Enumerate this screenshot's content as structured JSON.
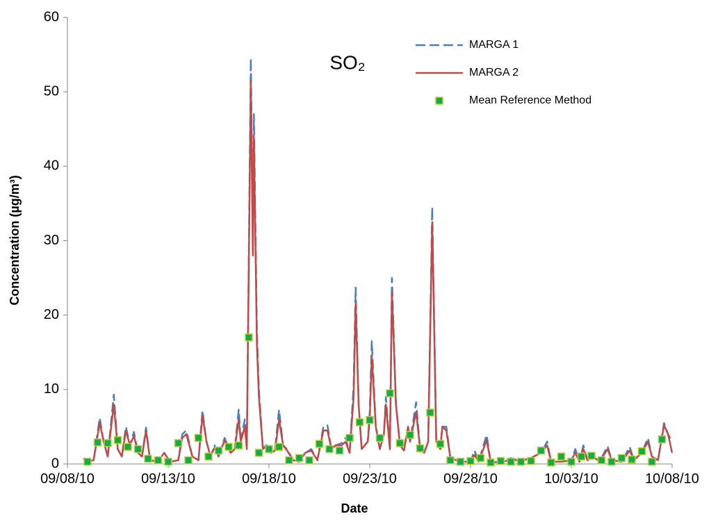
{
  "chart_data": {
    "type": "line",
    "title": "SO₂",
    "x_label": "Date",
    "y_label": "Concentration (µg/m³)",
    "xlim": [
      0,
      30
    ],
    "xticks": [
      {
        "value": 0,
        "label": "09/08/10"
      },
      {
        "value": 5,
        "label": "09/13/10"
      },
      {
        "value": 10,
        "label": "09/18/10"
      },
      {
        "value": 15,
        "label": "09/23/10"
      },
      {
        "value": 20,
        "label": "09/28/10"
      },
      {
        "value": 25,
        "label": "10/03/10"
      },
      {
        "value": 30,
        "label": "10/08/10"
      }
    ],
    "ylim": [
      0,
      60
    ],
    "yticks": [
      0,
      10,
      20,
      30,
      40,
      50,
      60
    ],
    "grid": false,
    "legend": "top-right",
    "x": [
      0.8,
      1.0,
      1.3,
      1.6,
      1.8,
      2.0,
      2.3,
      2.5,
      2.7,
      2.9,
      3.1,
      3.3,
      3.5,
      3.7,
      3.9,
      4.1,
      4.5,
      4.8,
      5.1,
      5.5,
      5.7,
      5.9,
      6.2,
      6.5,
      6.7,
      6.9,
      7.1,
      7.3,
      7.5,
      7.8,
      8.1,
      8.3,
      8.5,
      8.6,
      8.8,
      8.9,
      9.1,
      9.2,
      9.25,
      9.4,
      9.5,
      9.7,
      9.9,
      10.1,
      10.3,
      10.5,
      10.7,
      10.9,
      11.2,
      11.5,
      11.8,
      12.1,
      12.4,
      12.7,
      12.9,
      13.1,
      13.3,
      13.6,
      13.8,
      14.0,
      14.2,
      14.3,
      14.45,
      14.6,
      14.9,
      15.0,
      15.1,
      15.3,
      15.5,
      15.7,
      15.8,
      16.0,
      16.1,
      16.3,
      16.5,
      16.7,
      16.9,
      17.0,
      17.3,
      17.5,
      17.7,
      17.9,
      18.1,
      18.3,
      18.5,
      18.6,
      18.8,
      19.0,
      19.5,
      20.0,
      20.2,
      20.4,
      20.8,
      21.0,
      21.5,
      22.0,
      22.5,
      23.0,
      23.5,
      23.8,
      24.0,
      24.5,
      25.0,
      25.2,
      25.4,
      25.6,
      25.8,
      26.1,
      26.4,
      26.8,
      27.0,
      27.5,
      27.9,
      28.1,
      28.5,
      28.8,
      29.0,
      29.3,
      29.6,
      29.8,
      30.0
    ],
    "series": [
      {
        "name": "MARGA 1",
        "color": "#4a7ebb",
        "style": "dash",
        "values": [
          0.8,
          0.3,
          0.5,
          6.2,
          3,
          1,
          9.3,
          2,
          1,
          5,
          2.5,
          4.3,
          1.5,
          1,
          4.9,
          0.5,
          0.3,
          1.5,
          0.3,
          0.5,
          4,
          4.5,
          1,
          0.5,
          7.2,
          3,
          1,
          2.5,
          1,
          3.5,
          1.5,
          2,
          7.3,
          3,
          6,
          2,
          54.5,
          30,
          47,
          18,
          10,
          2,
          2.7,
          1.5,
          2,
          7.3,
          2.5,
          2,
          0.5,
          0.3,
          1.5,
          2,
          0.5,
          5,
          5.2,
          2,
          2.5,
          2.8,
          3.5,
          1.5,
          10.5,
          23.7,
          8,
          2,
          3,
          7,
          16.5,
          5,
          2,
          4,
          9,
          2,
          25,
          8,
          2.5,
          2,
          5,
          3,
          8.3,
          2,
          1.5,
          3,
          34.5,
          3,
          2,
          5,
          5,
          0.8,
          0.3,
          0.3,
          1.8,
          0.3,
          3.9,
          0.3,
          0.2,
          0.8,
          0.4,
          0.8,
          1.5,
          3,
          0.3,
          0.3,
          0.5,
          2,
          0.3,
          2.5,
          0.5,
          1,
          0.3,
          2.4,
          0.5,
          0.3,
          2.3,
          0.5,
          1.5,
          3.5,
          1,
          0.5,
          5.5,
          4,
          3
        ]
      },
      {
        "name": "MARGA 2",
        "color": "#be4b48",
        "style": "line",
        "values": [
          0.7,
          0.3,
          0.5,
          5.5,
          3,
          1,
          8,
          2,
          1,
          4.5,
          2.5,
          3.8,
          1.5,
          1,
          4.5,
          0.5,
          0.3,
          1.5,
          0.3,
          0.5,
          3.5,
          4,
          1,
          0.5,
          6.5,
          3,
          1,
          2.2,
          1,
          3.2,
          1.5,
          2,
          6,
          3,
          5,
          2,
          51.5,
          28,
          44,
          16,
          9,
          2,
          2.5,
          1.5,
          1.8,
          6,
          2.5,
          1.8,
          0.5,
          0.3,
          1.5,
          1.8,
          0.5,
          4.5,
          4.5,
          2,
          2.5,
          2.5,
          3,
          1.5,
          9,
          21.5,
          8,
          2,
          3,
          6,
          14.5,
          5,
          2,
          4,
          8,
          2,
          23,
          8,
          2.5,
          1.8,
          5,
          3,
          7,
          2,
          1.5,
          3,
          32.5,
          3,
          2,
          5,
          4.5,
          0.8,
          0.3,
          0.3,
          1.2,
          0.3,
          3.2,
          0.3,
          0.2,
          0.6,
          0.4,
          0.8,
          1.5,
          2.5,
          0.3,
          0.3,
          0.5,
          1.5,
          0.3,
          2,
          0.5,
          1,
          0.3,
          2,
          0.5,
          0.3,
          1.8,
          0.5,
          1.5,
          3,
          1,
          0.5,
          5.2,
          4,
          1.5
        ]
      },
      {
        "name": "Mean Reference Method",
        "color": "#1aa84a",
        "edge_color": "#b5d334",
        "style": "marker",
        "x": [
          1,
          1.5,
          2,
          2.5,
          3,
          3.5,
          4,
          4.5,
          5,
          5.5,
          6,
          6.5,
          7,
          7.5,
          8,
          8.5,
          9,
          9.5,
          10,
          10.5,
          11,
          11.5,
          12,
          12.5,
          13,
          13.5,
          14,
          14.5,
          15,
          15.5,
          16,
          16.5,
          17,
          17.5,
          18,
          18.5,
          19,
          19.5,
          20,
          20.5,
          21,
          21.5,
          22,
          22.5,
          23,
          23.5,
          24,
          24.5,
          25,
          25.5,
          26,
          26.5,
          27,
          27.5,
          28,
          28.5,
          29,
          29.5
        ],
        "values": [
          0.3,
          2.9,
          2.8,
          3.2,
          2.3,
          2.0,
          0.7,
          0.5,
          0.3,
          2.8,
          0.5,
          3.5,
          1.0,
          1.8,
          2.3,
          2.5,
          17,
          1.5,
          2.0,
          2.3,
          0.5,
          0.8,
          0.5,
          2.7,
          2.0,
          1.8,
          3.5,
          5.6,
          5.9,
          3.5,
          9.5,
          2.8,
          3.9,
          2.1,
          6.9,
          2.7,
          0.5,
          0.3,
          0.4,
          0.8,
          0.2,
          0.4,
          0.3,
          0.3,
          0.4,
          1.8,
          0.2,
          1.0,
          0.3,
          1.0,
          1.1,
          0.5,
          0.3,
          0.8,
          0.6,
          1.7,
          0.3,
          3.3
        ]
      }
    ]
  }
}
